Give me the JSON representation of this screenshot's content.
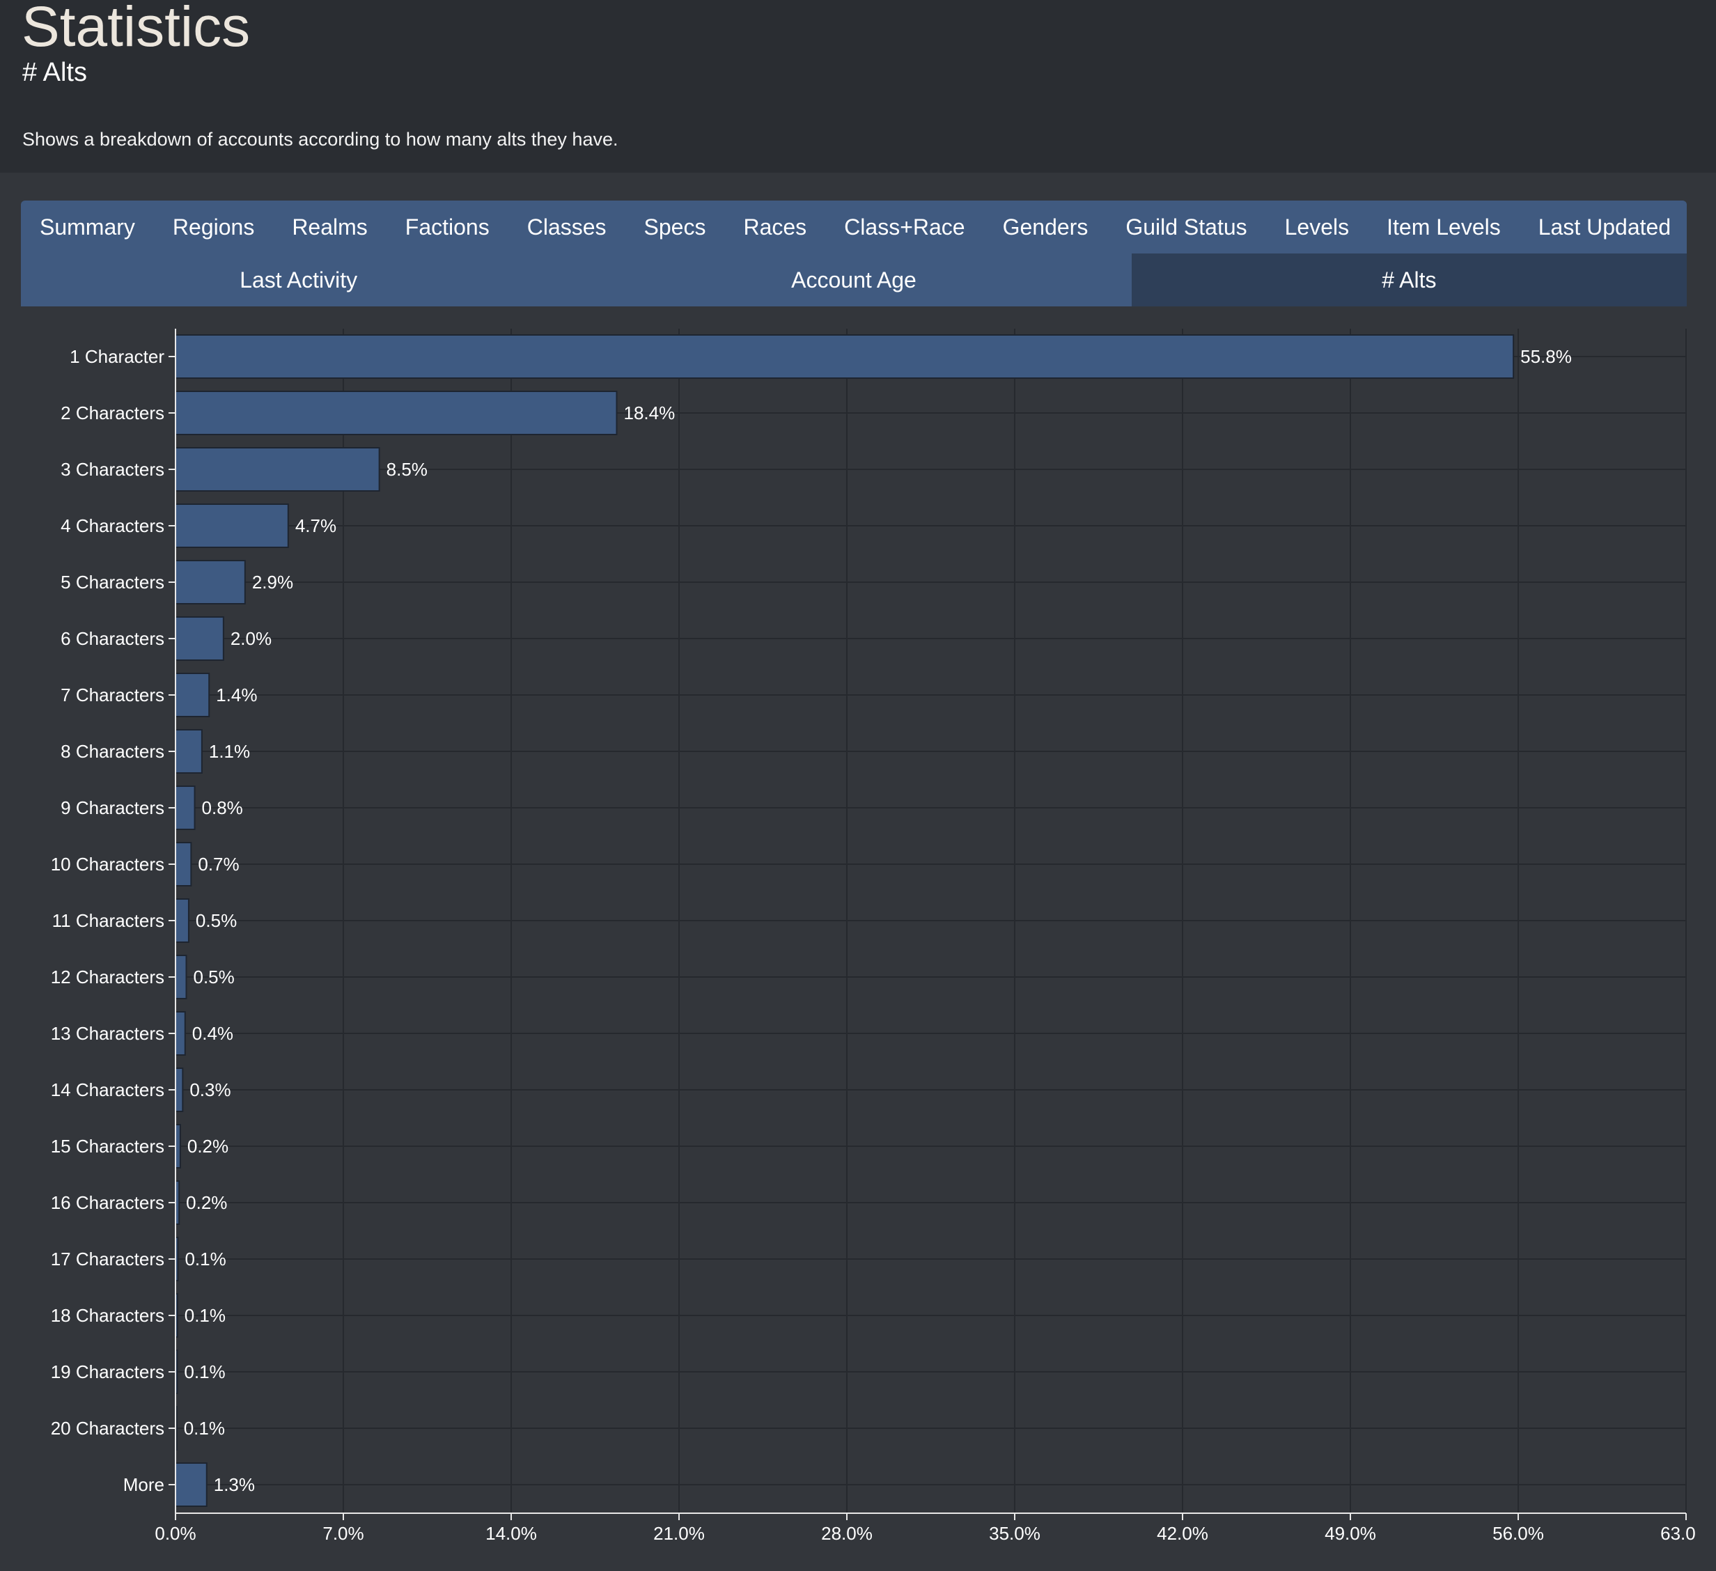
{
  "page": {
    "title": "Statistics",
    "subtitle": "# Alts",
    "description": "Shows a breakdown of accounts according to how many alts they have."
  },
  "tabs": {
    "primary": [
      {
        "label": "Summary"
      },
      {
        "label": "Regions"
      },
      {
        "label": "Realms"
      },
      {
        "label": "Factions"
      },
      {
        "label": "Classes"
      },
      {
        "label": "Specs"
      },
      {
        "label": "Races"
      },
      {
        "label": "Class+Race"
      },
      {
        "label": "Genders"
      },
      {
        "label": "Guild Status"
      },
      {
        "label": "Levels"
      },
      {
        "label": "Item Levels"
      },
      {
        "label": "Last Updated"
      }
    ],
    "secondary": [
      {
        "label": "Last Activity",
        "active": false
      },
      {
        "label": "Account Age",
        "active": false
      },
      {
        "label": "# Alts",
        "active": true
      }
    ]
  },
  "colors": {
    "bar_fill": "#3e5a82",
    "bar_stroke": "#1e2530",
    "grid": "#26292e",
    "axis": "#e8e8e8",
    "text": "#ffffff",
    "tab_bg": "#405a80",
    "tab_active_bg": "#2e3f58"
  },
  "chart_data": {
    "type": "bar",
    "orientation": "horizontal",
    "categories": [
      "1 Character",
      "2 Characters",
      "3 Characters",
      "4 Characters",
      "5 Characters",
      "6 Characters",
      "7 Characters",
      "8 Characters",
      "9 Characters",
      "10 Characters",
      "11 Characters",
      "12 Characters",
      "13 Characters",
      "14 Characters",
      "15 Characters",
      "16 Characters",
      "17 Characters",
      "18 Characters",
      "19 Characters",
      "20 Characters",
      "More"
    ],
    "values": [
      55.8,
      18.4,
      8.5,
      4.7,
      2.9,
      2.0,
      1.4,
      1.1,
      0.8,
      0.65,
      0.55,
      0.45,
      0.4,
      0.3,
      0.2,
      0.15,
      0.1,
      0.08,
      0.07,
      0.05,
      1.3
    ],
    "value_labels": [
      "55.8%",
      "18.4%",
      "8.5%",
      "4.7%",
      "2.9%",
      "2.0%",
      "1.4%",
      "1.1%",
      "0.8%",
      "0.7%",
      "0.5%",
      "0.5%",
      "0.4%",
      "0.3%",
      "0.2%",
      "0.2%",
      "0.1%",
      "0.1%",
      "0.1%",
      "0.1%",
      "1.3%"
    ],
    "x_ticks": [
      0,
      7,
      14,
      21,
      28,
      35,
      42,
      49,
      56,
      63
    ],
    "x_tick_labels": [
      "0.0%",
      "7.0%",
      "14.0%",
      "21.0%",
      "28.0%",
      "35.0%",
      "42.0%",
      "49.0%",
      "56.0%",
      "63.0%"
    ],
    "xlim": [
      0,
      63
    ],
    "grid": true,
    "legend": false
  }
}
